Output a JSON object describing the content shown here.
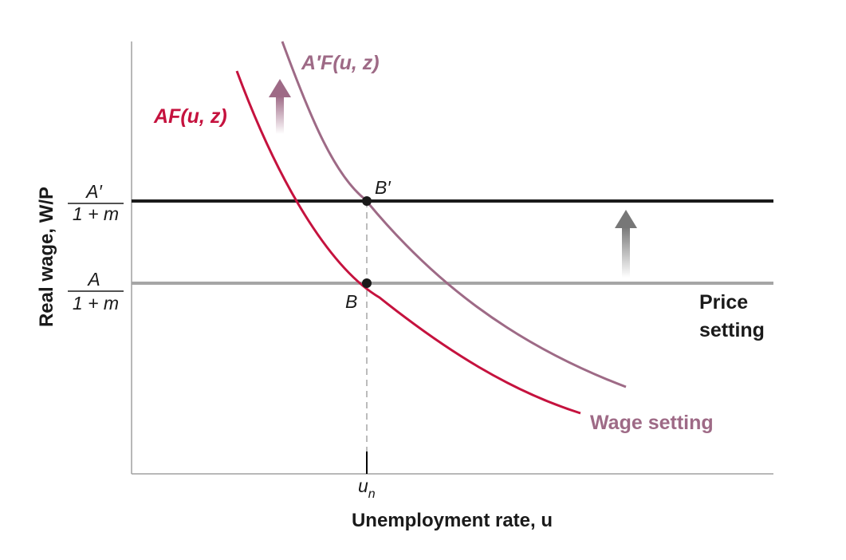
{
  "colors": {
    "wage_curve": "#c5123e",
    "wage_curve_shifted": "#9e6a86",
    "price_line_new": "#1a1a1a",
    "price_line_old": "#a5a5a5",
    "axis": "#a0a0a0",
    "arrow_gray": "#777777",
    "arrow_pink": "#9e6a86"
  },
  "labels": {
    "curve_original": "AF(u, z)",
    "curve_shifted": "A′F(u, z)",
    "wage_setting": "Wage setting",
    "price_setting_line1": "Price",
    "price_setting_line2": "setting",
    "point_b": "B",
    "point_b_prime": "B′",
    "y_tick_high_num": "A′",
    "y_tick_high_den": "1 + m",
    "y_tick_low_num": "A",
    "y_tick_low_den": "1 + m",
    "x_tick": "u",
    "x_tick_sub": "n",
    "x_axis_title": "Unemployment rate, u",
    "y_axis_title": "Real wage, W/P"
  }
}
